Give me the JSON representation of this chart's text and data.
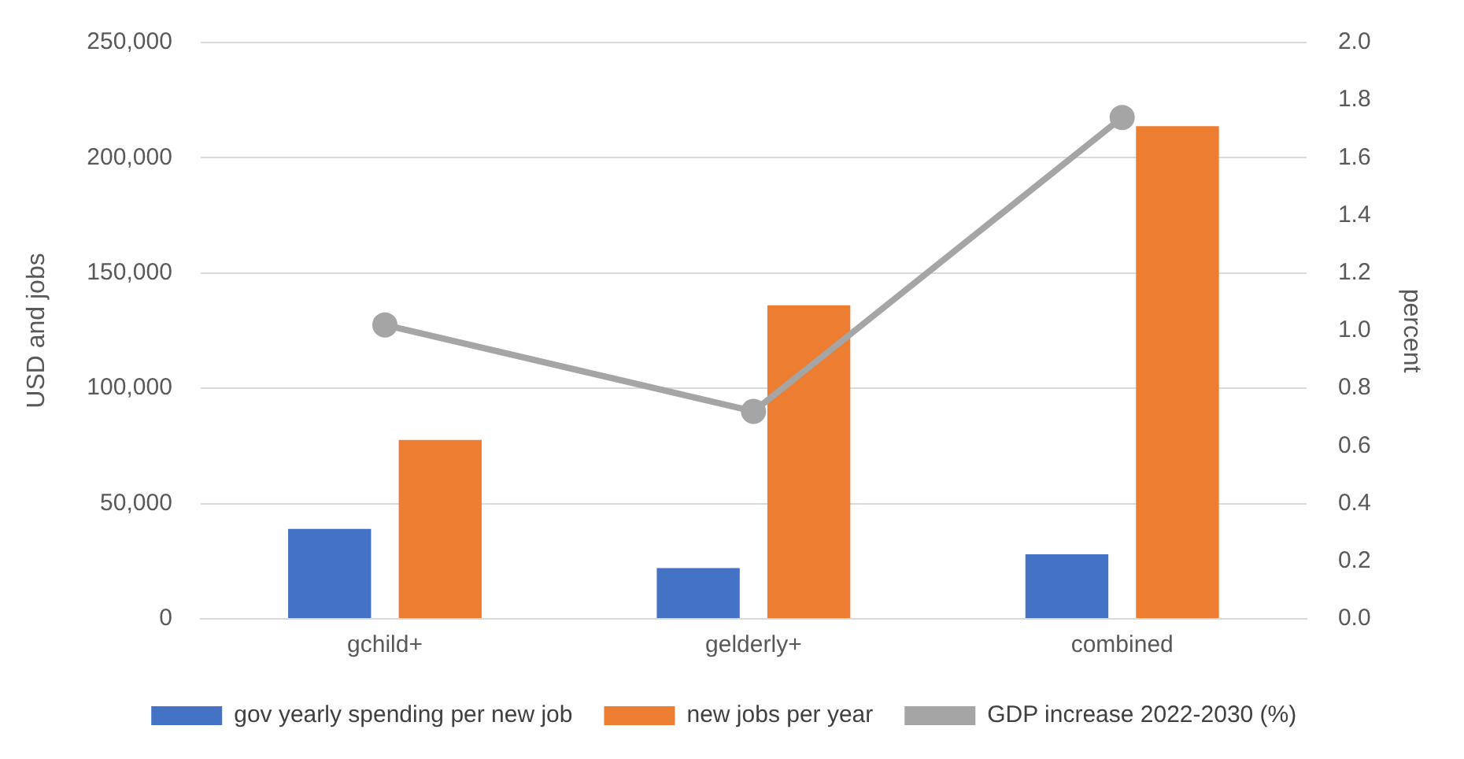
{
  "chart_data": {
    "type": "bar",
    "categories": [
      "gchild+",
      "gelderly+",
      "combined"
    ],
    "series": [
      {
        "name": "gov yearly spending per new job",
        "color": "#4472c4",
        "values": [
          39000,
          22000,
          28000
        ]
      },
      {
        "name": "new jobs per year",
        "color": "#ed7d31",
        "values": [
          77600,
          136000,
          213700
        ]
      },
      {
        "name": "GDP increase 2022-2030 (%)",
        "type": "line",
        "axis": "y2",
        "color": "#a5a5a5",
        "values": [
          1.02,
          0.72,
          1.74
        ]
      }
    ],
    "ylabel": "USD and jobs",
    "y2label": "percent",
    "ylim": [
      0,
      250000
    ],
    "yticks": [
      {
        "value": 0,
        "label": "0"
      },
      {
        "value": 50000,
        "label": "50,000"
      },
      {
        "value": 100000,
        "label": "100,000"
      },
      {
        "value": 150000,
        "label": "150,000"
      },
      {
        "value": 200000,
        "label": "200,000"
      },
      {
        "value": 250000,
        "label": "250,000"
      }
    ],
    "y2lim": [
      0,
      2
    ],
    "y2ticks": [
      {
        "value": 0,
        "label": "0.0"
      },
      {
        "value": 0.2,
        "label": "0.2"
      },
      {
        "value": 0.4,
        "label": "0.4"
      },
      {
        "value": 0.6,
        "label": "0.6"
      },
      {
        "value": 0.8,
        "label": "0.8"
      },
      {
        "value": 1,
        "label": "1.0"
      },
      {
        "value": 1.2,
        "label": "1.2"
      },
      {
        "value": 1.4,
        "label": "1.4"
      },
      {
        "value": 1.6,
        "label": "1.6"
      },
      {
        "value": 1.8,
        "label": "1.8"
      },
      {
        "value": 2,
        "label": "2.0"
      }
    ],
    "grid": "y",
    "legend": "bottom",
    "marker": "circle",
    "line_style": "solid"
  }
}
